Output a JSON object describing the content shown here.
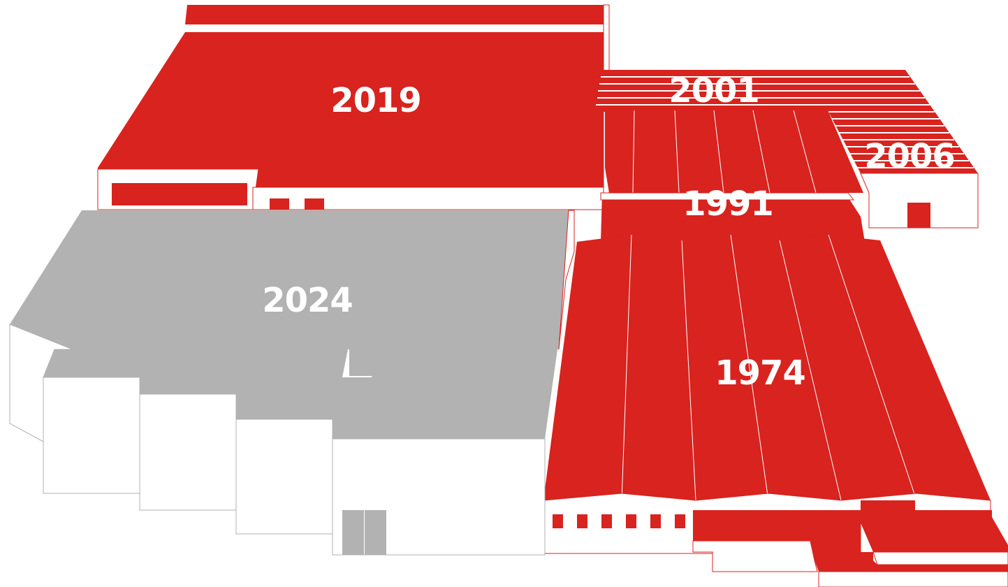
{
  "colors": {
    "existing": "#d8231f",
    "new": "#b2b2b2",
    "wall": "#ffffff",
    "wall_line": "#b0b0b0"
  },
  "buildings": [
    {
      "id": "b2019",
      "year": "2019"
    },
    {
      "id": "b2001",
      "year": "2001"
    },
    {
      "id": "b2006",
      "year": "2006"
    },
    {
      "id": "b1991",
      "year": "1991"
    },
    {
      "id": "b2024",
      "year": "2024"
    },
    {
      "id": "b1974",
      "year": "1974"
    }
  ]
}
